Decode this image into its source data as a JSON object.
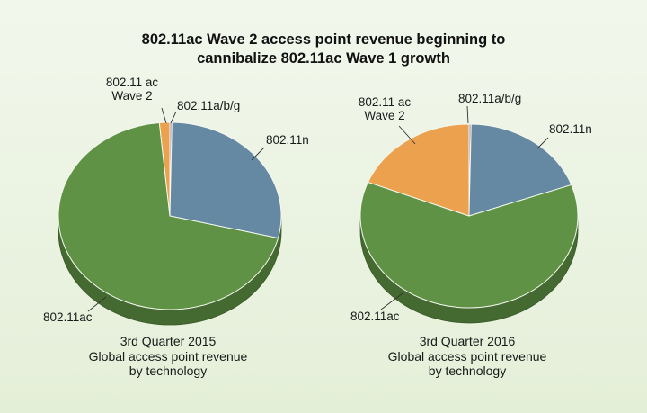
{
  "title_line1": "802.11ac Wave 2 access point revenue beginning to",
  "title_line2": "cannibalize 802.11ac Wave 1 growth",
  "chart_data": [
    {
      "type": "pie",
      "caption": [
        "3rd Quarter 2015",
        "Global access point revenue",
        "by technology"
      ],
      "slices": [
        {
          "label": [
            "802.11a/b/g"
          ],
          "value": 0.3,
          "color": "#9b8fb0"
        },
        {
          "label": [
            "802.11n"
          ],
          "value": 28.5,
          "color": "#6588a3"
        },
        {
          "label": [
            "802.11ac"
          ],
          "value": 69.7,
          "color": "#5f9244"
        },
        {
          "label": [
            "802.11 ac",
            "Wave 2"
          ],
          "value": 1.5,
          "color": "#eca14e"
        }
      ]
    },
    {
      "type": "pie",
      "caption": [
        "3rd Quarter 2016",
        "Global access point revenue",
        "by technology"
      ],
      "slices": [
        {
          "label": [
            "802.11a/b/g"
          ],
          "value": 0.3,
          "color": "#9b8fb0"
        },
        {
          "label": [
            "802.11n"
          ],
          "value": 19.2,
          "color": "#6588a3"
        },
        {
          "label": [
            "802.11ac"
          ],
          "value": 61.5,
          "color": "#5f9244"
        },
        {
          "label": [
            "802.11 ac",
            "Wave 2"
          ],
          "value": 19.0,
          "color": "#eca14e"
        }
      ]
    }
  ]
}
